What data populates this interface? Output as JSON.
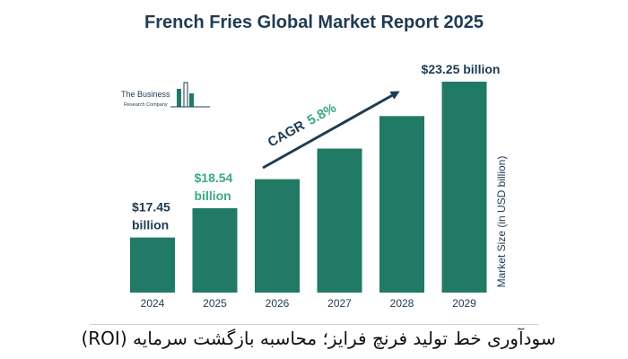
{
  "title": "French Fries Global Market Report 2025",
  "logo": {
    "line1": "The Business",
    "line2": "Research Company"
  },
  "cagr": {
    "label": "CAGR",
    "value": "5.8%"
  },
  "caption": "سودآوری خط تولید فرنچ فرایز؛ محاسبه بازگشت سرمایه (ROI)",
  "colors": {
    "bar": "#217a66",
    "title": "#1f3b52",
    "highlight": "#3daa7f",
    "dark_label": "#1f3b52"
  },
  "chart_data": {
    "type": "bar",
    "title": "French Fries Global Market Report 2025",
    "categories": [
      "2024",
      "2025",
      "2026",
      "2027",
      "2028",
      "2029"
    ],
    "values": [
      17.45,
      18.54,
      19.62,
      20.76,
      21.97,
      23.25
    ],
    "data_labels": [
      {
        "index": 0,
        "lines": [
          "$17.45",
          "billion"
        ],
        "color": "#1f3b52"
      },
      {
        "index": 1,
        "lines": [
          "$18.54",
          "billion"
        ],
        "color": "#3daa7f"
      },
      {
        "index": 5,
        "lines": [
          "$23.25 billion"
        ],
        "color": "#1f3b52"
      }
    ],
    "ylabel": "Market Size (in USD billion)",
    "xlabel": "",
    "ylim": [
      15.4,
      23.25
    ],
    "grid": false,
    "legend": "none"
  }
}
